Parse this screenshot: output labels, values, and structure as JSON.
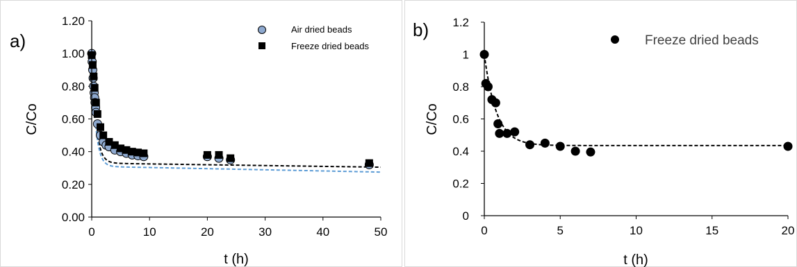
{
  "chart_data": [
    {
      "panel_label": "a)",
      "type": "scatter",
      "xlabel": "t (h)",
      "ylabel": "C/Co",
      "xlim": [
        0,
        50
      ],
      "ylim": [
        0,
        1.2
      ],
      "x_ticks": [
        0,
        10,
        20,
        30,
        40,
        50
      ],
      "y_ticks": [
        "0.00",
        "0.20",
        "0.40",
        "0.60",
        "0.80",
        "1.00",
        "1.20"
      ],
      "grid": false,
      "legend_position": "top-right",
      "series": [
        {
          "name": "Air dried beads",
          "marker": "circle",
          "color": "#8ea9cf",
          "edge_color": "#000000",
          "points": [
            [
              0,
              1.0
            ],
            [
              0.08,
              0.95
            ],
            [
              0.17,
              0.9
            ],
            [
              0.25,
              0.85
            ],
            [
              0.33,
              0.8
            ],
            [
              0.42,
              0.76
            ],
            [
              0.5,
              0.73
            ],
            [
              0.58,
              0.7
            ],
            [
              0.67,
              0.67
            ],
            [
              0.75,
              0.64
            ],
            [
              1.0,
              0.57
            ],
            [
              1.5,
              0.5
            ],
            [
              2.0,
              0.46
            ],
            [
              2.5,
              0.44
            ],
            [
              3.0,
              0.43
            ],
            [
              4.0,
              0.41
            ],
            [
              5.0,
              0.4
            ],
            [
              6.0,
              0.39
            ],
            [
              7.0,
              0.38
            ],
            [
              8.0,
              0.375
            ],
            [
              9.0,
              0.37
            ],
            [
              20.0,
              0.37
            ],
            [
              22.0,
              0.36
            ],
            [
              24.0,
              0.35
            ],
            [
              48.0,
              0.32
            ]
          ]
        },
        {
          "name": "Freeze dried beads",
          "marker": "square",
          "color": "#000000",
          "points": [
            [
              0,
              0.99
            ],
            [
              0.17,
              0.93
            ],
            [
              0.33,
              0.86
            ],
            [
              0.5,
              0.79
            ],
            [
              0.75,
              0.7
            ],
            [
              1.0,
              0.63
            ],
            [
              1.5,
              0.55
            ],
            [
              2.0,
              0.5
            ],
            [
              3.0,
              0.46
            ],
            [
              4.0,
              0.44
            ],
            [
              5.0,
              0.42
            ],
            [
              6.0,
              0.41
            ],
            [
              7.0,
              0.4
            ],
            [
              8.0,
              0.395
            ],
            [
              9.0,
              0.39
            ],
            [
              20.0,
              0.38
            ],
            [
              22.0,
              0.38
            ],
            [
              24.0,
              0.36
            ],
            [
              48.0,
              0.33
            ]
          ]
        }
      ],
      "fits": [
        {
          "color": "#000000",
          "params": [
            0.33,
            0.67,
            1.35,
            0.0005
          ]
        },
        {
          "color": "#5b9bd5",
          "params": [
            0.31,
            0.69,
            1.45,
            0.0007
          ]
        }
      ]
    },
    {
      "panel_label": "b)",
      "type": "scatter",
      "xlabel": "t (h)",
      "ylabel": "C/Co",
      "xlim": [
        0,
        20
      ],
      "ylim": [
        0,
        1.2
      ],
      "x_ticks": [
        0,
        5,
        10,
        15,
        20
      ],
      "y_ticks": [
        "0",
        "0.2",
        "0.4",
        "0.6",
        "0.8",
        "1",
        "1.2"
      ],
      "grid": false,
      "legend_position": "top-right",
      "series": [
        {
          "name": "Freeze dried beads",
          "marker": "circle",
          "color": "#000000",
          "points": [
            [
              0,
              1.0
            ],
            [
              0.1,
              0.82
            ],
            [
              0.25,
              0.8
            ],
            [
              0.5,
              0.72
            ],
            [
              0.75,
              0.7
            ],
            [
              0.9,
              0.57
            ],
            [
              1.0,
              0.51
            ],
            [
              1.5,
              0.51
            ],
            [
              2.0,
              0.52
            ],
            [
              3.0,
              0.44
            ],
            [
              4.0,
              0.45
            ],
            [
              5.0,
              0.43
            ],
            [
              6.0,
              0.4
            ],
            [
              7.0,
              0.395
            ],
            [
              20.0,
              0.43
            ]
          ]
        }
      ],
      "fits": [
        {
          "color": "#000000",
          "params": [
            0.435,
            0.565,
            1.25,
            0
          ]
        }
      ]
    }
  ]
}
